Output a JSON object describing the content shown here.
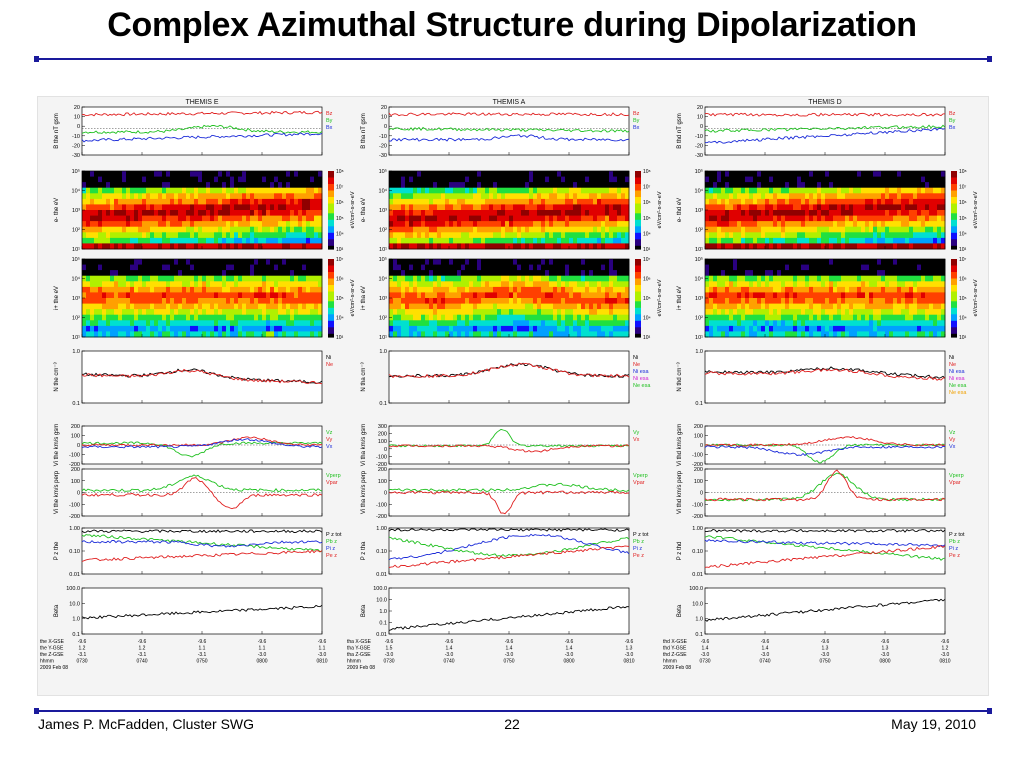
{
  "slide": {
    "title": "Complex Azimuthal Structure during Dipolarization",
    "footer_left": "James P. McFadden, Cluster SWG",
    "footer_center": "22",
    "footer_right": "May 19, 2010"
  },
  "chart_data": [
    {
      "type": "line",
      "probe": "THEMIS E",
      "title": "THEMIS E",
      "panels": [
        {
          "id": "B",
          "ylabel": "B the nT gsm",
          "yticks": [
            "20",
            "10",
            "0",
            "-10",
            "-20",
            "-30"
          ],
          "legend": [
            "Bz",
            "By",
            "Bx"
          ]
        },
        {
          "id": "eflux_e",
          "ylabel": "e- the eV",
          "yticks": [
            "10⁵",
            "10⁴",
            "10³",
            "10²",
            "10¹"
          ],
          "cbar_ticks": [
            "10⁸",
            "10⁷",
            "10⁶",
            "10⁵",
            "10⁴",
            "10³"
          ],
          "cbar_label": "eV/cm²-s-sr-eV"
        },
        {
          "id": "eflux_i",
          "ylabel": "i+ the eV",
          "yticks": [
            "10⁵",
            "10⁴",
            "10³",
            "10²",
            "10¹"
          ],
          "cbar_ticks": [
            "10⁷",
            "10⁶",
            "10⁵",
            "10⁴",
            "10³"
          ],
          "cbar_label": "eV/cm²-s-sr-eV"
        },
        {
          "id": "N",
          "ylabel": "N the cm⁻³",
          "yticks": [
            "1.0",
            "0.1"
          ],
          "legend": [
            "Ni",
            "Ne"
          ]
        },
        {
          "id": "Vi",
          "ylabel": "Vi the km/s gsm",
          "yticks": [
            "200",
            "100",
            "0",
            "-100",
            "-200"
          ],
          "legend": [
            "Vz",
            "Vy",
            "Vx"
          ]
        },
        {
          "id": "Vperp",
          "ylabel": "Vi the km/s perp",
          "yticks": [
            "200",
            "100",
            "0",
            "-100",
            "-200"
          ],
          "legend": [
            "Vperp",
            "Vpar"
          ]
        },
        {
          "id": "P",
          "ylabel": "P z the",
          "yticks": [
            "1.00",
            "0.10",
            "0.01"
          ],
          "legend": [
            "P z tot",
            "Pb z",
            "Pi z",
            "Pe z"
          ]
        },
        {
          "id": "Beta",
          "ylabel": "Beta",
          "yticks": [
            "100.0",
            "10.0",
            "1.0",
            "0.1"
          ],
          "legend": []
        }
      ],
      "ephemeris_labels": [
        "the X-GSE",
        "the Y-GSE",
        "the Z-GSE",
        "hhmm",
        "2009 Feb 08"
      ],
      "ephemeris": [
        [
          "-9.6",
          "-9.6",
          "-9.6",
          "-9.6",
          "-9.6"
        ],
        [
          "1.2",
          "1.2",
          "1.1",
          "1.1",
          "1.1"
        ],
        [
          "-3.1",
          "-3.1",
          "-3.1",
          "-3.0",
          "-3.0"
        ],
        [
          "0730",
          "0740",
          "0750",
          "0800",
          "0810"
        ]
      ]
    },
    {
      "type": "line",
      "probe": "THEMIS A",
      "title": "THEMIS A",
      "panels": [
        {
          "id": "B",
          "ylabel": "B tha nT gsm",
          "yticks": [
            "20",
            "10",
            "0",
            "-10",
            "-20",
            "-30"
          ],
          "legend": [
            "Bz",
            "By",
            "Bx"
          ]
        },
        {
          "id": "eflux_e",
          "ylabel": "e- tha eV",
          "yticks": [
            "10⁵",
            "10⁴",
            "10³",
            "10²",
            "10¹"
          ],
          "cbar_ticks": [
            "10⁸",
            "10⁷",
            "10⁶",
            "10⁵",
            "10⁴",
            "10³"
          ],
          "cbar_label": "eV/cm²-s-sr-eV"
        },
        {
          "id": "eflux_i",
          "ylabel": "i+ tha eV",
          "yticks": [
            "10⁵",
            "10⁴",
            "10³",
            "10²",
            "10¹"
          ],
          "cbar_ticks": [
            "10⁷",
            "10⁶",
            "10⁵",
            "10⁴",
            "10³"
          ],
          "cbar_label": "eV/cm²-s-sr-eV"
        },
        {
          "id": "N",
          "ylabel": "N tha cm⁻³",
          "yticks": [
            "1.0",
            "0.1"
          ],
          "legend": [
            "Ni",
            "Ne",
            "Ni esa",
            "Ni esa",
            "Ne esa"
          ]
        },
        {
          "id": "Vi",
          "ylabel": "Vi tha km/s gsm",
          "yticks": [
            "300",
            "200",
            "100",
            "0",
            "-100",
            "-200"
          ],
          "legend": [
            "Vy",
            "Vx"
          ]
        },
        {
          "id": "Vperp",
          "ylabel": "Vi tha km/s perp",
          "yticks": [
            "200",
            "100",
            "0",
            "-100",
            "-200"
          ],
          "legend": [
            "Vperp",
            "Vpar"
          ]
        },
        {
          "id": "P",
          "ylabel": "P z tha",
          "yticks": [
            "1.00",
            "0.10",
            "0.01"
          ],
          "legend": [
            "P z tot",
            "Pb z",
            "Pi z",
            "Pe z"
          ]
        },
        {
          "id": "Beta",
          "ylabel": "Beta",
          "yticks": [
            "100.0",
            "10.0",
            "1.0",
            "0.1",
            "0.01"
          ],
          "legend": []
        }
      ],
      "ephemeris_labels": [
        "tha X-GSE",
        "tha Y-GSE",
        "tha Z-GSE",
        "hhmm",
        "2009 Feb 08"
      ],
      "ephemeris": [
        [
          "-9.6",
          "-9.6",
          "-9.6",
          "-9.6",
          "-9.6"
        ],
        [
          "1.5",
          "1.4",
          "1.4",
          "1.4",
          "1.3"
        ],
        [
          "-3.0",
          "-3.0",
          "-3.0",
          "-3.0",
          "-3.0"
        ],
        [
          "0730",
          "0740",
          "0750",
          "0800",
          "0810"
        ]
      ]
    },
    {
      "type": "line",
      "probe": "THEMIS D",
      "title": "THEMIS D",
      "panels": [
        {
          "id": "B",
          "ylabel": "B thd nT gsm",
          "yticks": [
            "20",
            "10",
            "0",
            "-10",
            "-20",
            "-30"
          ],
          "legend": [
            "Bz",
            "By",
            "Bx"
          ]
        },
        {
          "id": "eflux_e",
          "ylabel": "e- thd eV",
          "yticks": [
            "10⁵",
            "10⁴",
            "10³",
            "10²",
            "10¹"
          ],
          "cbar_ticks": [
            "10⁸",
            "10⁷",
            "10⁶",
            "10⁵",
            "10⁴",
            "10³"
          ],
          "cbar_label": "eV/cm²-s-sr-eV"
        },
        {
          "id": "eflux_i",
          "ylabel": "i+ thd eV",
          "yticks": [
            "10⁵",
            "10⁴",
            "10³",
            "10²",
            "10¹"
          ],
          "cbar_ticks": [
            "10⁷",
            "10⁶",
            "10⁵",
            "10⁴",
            "10³"
          ],
          "cbar_label": "eV/cm²-s-sr-eV"
        },
        {
          "id": "N",
          "ylabel": "N thd cm⁻³",
          "yticks": [
            "1.0",
            "0.1"
          ],
          "legend": [
            "Ni",
            "Ne",
            "Ni esa",
            "Ni esa",
            "Ne esa",
            "Ne esa"
          ]
        },
        {
          "id": "Vi",
          "ylabel": "Vi thd km/s gsm",
          "yticks": [
            "200",
            "100",
            "0",
            "-100",
            "-200"
          ],
          "legend": [
            "Vz",
            "Vy",
            "Vx"
          ]
        },
        {
          "id": "Vperp",
          "ylabel": "Vi thd km/s perp",
          "yticks": [
            "200",
            "100",
            "0",
            "-100",
            "-200"
          ],
          "legend": [
            "Vperp",
            "Vpar"
          ]
        },
        {
          "id": "P",
          "ylabel": "P z thd",
          "yticks": [
            "1.00",
            "0.10",
            "0.01"
          ],
          "legend": [
            "P z tot",
            "Pb z",
            "Pi z",
            "Pe z"
          ]
        },
        {
          "id": "Beta",
          "ylabel": "Beta",
          "yticks": [
            "100.0",
            "10.0",
            "1.0",
            "0.1"
          ],
          "legend": []
        }
      ],
      "ephemeris_labels": [
        "thd X-GSE",
        "thd Y-GSE",
        "thd Z-GSE",
        "hhmm",
        "2009 Feb 08"
      ],
      "ephemeris": [
        [
          "-9.6",
          "-9.6",
          "-9.6",
          "-9.6",
          "-9.6"
        ],
        [
          "1.4",
          "1.4",
          "1.3",
          "1.3",
          "1.2"
        ],
        [
          "-3.0",
          "-3.0",
          "-3.0",
          "-3.0",
          "-3.0"
        ],
        [
          "0730",
          "0740",
          "0750",
          "0800",
          "0810"
        ]
      ]
    }
  ],
  "colors": {
    "title_rule": "#1a1a9c",
    "red": "#e02020",
    "green": "#20c020",
    "blue": "#1a2ad8",
    "black": "#000000",
    "magenta": "#d020d0",
    "orange": "#f0a000",
    "yellow": "#d8d800"
  }
}
